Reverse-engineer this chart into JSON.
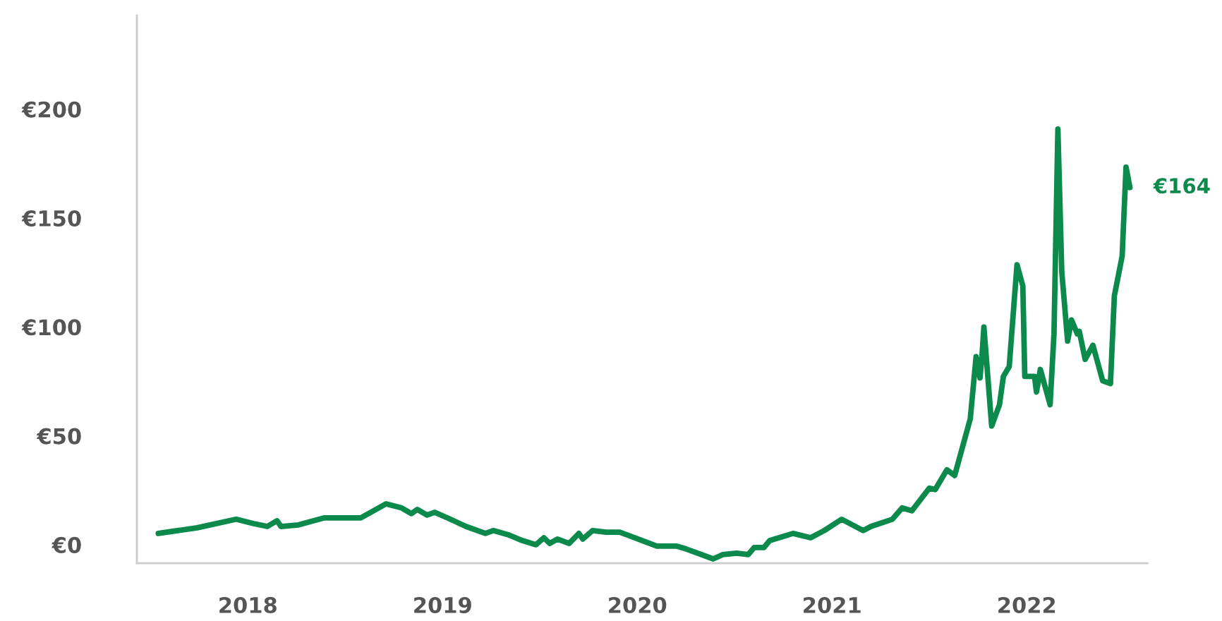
{
  "chart_data": {
    "type": "line",
    "x": [
      2017.54,
      2017.74,
      2017.94,
      2018.03,
      2018.1,
      2018.15,
      2018.17,
      2018.26,
      2018.39,
      2018.58,
      2018.71,
      2018.79,
      2018.84,
      2018.87,
      2018.92,
      2018.96,
      2019.04,
      2019.12,
      2019.22,
      2019.26,
      2019.34,
      2019.41,
      2019.48,
      2019.52,
      2019.55,
      2019.59,
      2019.65,
      2019.7,
      2019.72,
      2019.77,
      2019.84,
      2019.91,
      2020.1,
      2020.2,
      2020.25,
      2020.39,
      2020.44,
      2020.51,
      2020.57,
      2020.6,
      2020.65,
      2020.68,
      2020.8,
      2020.89,
      2020.96,
      2021.05,
      2021.16,
      2021.2,
      2021.31,
      2021.36,
      2021.41,
      2021.5,
      2021.53,
      2021.59,
      2021.63,
      2021.71,
      2021.74,
      2021.76,
      2021.77,
      2021.78,
      2021.82,
      2021.86,
      2021.88,
      2021.91,
      2021.95,
      2021.98,
      2021.99,
      2022.04,
      2022.05,
      2022.07,
      2022.12,
      2022.14,
      2022.16,
      2022.18,
      2022.21,
      2022.23,
      2022.26,
      2022.27,
      2022.3,
      2022.34,
      2022.39,
      2022.43,
      2022.45,
      2022.49,
      2022.51,
      2022.53
    ],
    "series": [
      {
        "color": "#0b8a4c",
        "values": [
          5.2,
          7.8,
          11.7,
          9.7,
          8.4,
          11,
          8.4,
          9.1,
          12.3,
          12.3,
          18.8,
          16.9,
          14.3,
          16.2,
          13.6,
          14.9,
          11.7,
          8.4,
          5.2,
          6.5,
          4.5,
          1.9,
          0,
          3.2,
          0.6,
          2.6,
          0.6,
          5.2,
          2.6,
          6.5,
          5.8,
          5.8,
          -0.6,
          -0.6,
          -1.9,
          -6.5,
          -4.5,
          -3.9,
          -4.5,
          -1.3,
          -1.3,
          1.9,
          5.2,
          3.2,
          6.5,
          11.7,
          6.5,
          8.4,
          11.7,
          16.9,
          15.6,
          26,
          25.3,
          34.4,
          31.8,
          57.8,
          86.4,
          76.6,
          86.4,
          100,
          54.5,
          64.3,
          77.3,
          81.8,
          128.6,
          118.8,
          77.3,
          77.3,
          70.1,
          80.5,
          64.3,
          96.8,
          190.9,
          125.3,
          93.5,
          103.2,
          96.8,
          98,
          85.1,
          91.6,
          75.3,
          74,
          114.3,
          132.5,
          173.4,
          164
        ]
      }
    ],
    "annotations": [
      {
        "text": "€164",
        "x": 2022.53,
        "y": 164
      }
    ],
    "xlim": [
      2017.43,
      2022.62
    ],
    "ylim": [
      -8.5,
      243
    ],
    "xticks": [
      2018,
      2019,
      2020,
      2021,
      2022
    ],
    "yticks": [
      {
        "value": 0,
        "label": "€0"
      },
      {
        "value": 50,
        "label": "€50"
      },
      {
        "value": 100,
        "label": "€100"
      },
      {
        "value": 150,
        "label": "€150"
      },
      {
        "value": 200,
        "label": "€200"
      }
    ],
    "grid": false,
    "legend": false
  }
}
